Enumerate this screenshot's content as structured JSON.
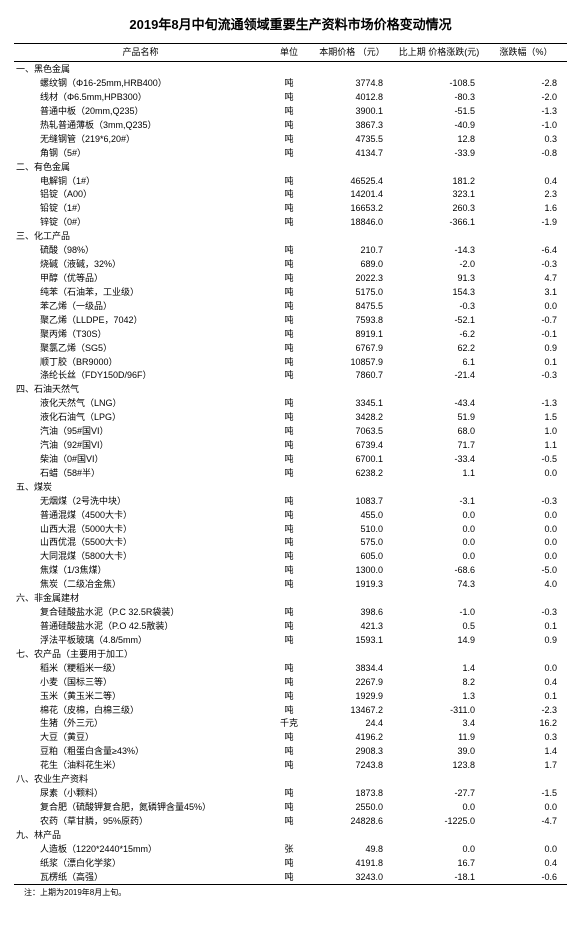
{
  "title": "2019年8月中旬流通领域重要生产资料市场价格变动情况",
  "columns": {
    "name": "产品名称",
    "unit": "单位",
    "price": "本期价格\n（元）",
    "change": "比上期\n价格涨跌(元)",
    "pct": "涨跌幅（%）"
  },
  "footnote": "注：上期为2019年8月上旬。",
  "rows": [
    {
      "cat": "一、黑色金属"
    },
    {
      "n": "螺纹钢（Φ16-25mm,HRB400）",
      "u": "吨",
      "p": "3774.8",
      "c": "-108.5",
      "r": "-2.8"
    },
    {
      "n": "线材（Φ6.5mm,HPB300）",
      "u": "吨",
      "p": "4012.8",
      "c": "-80.3",
      "r": "-2.0"
    },
    {
      "n": "普通中板（20mm,Q235）",
      "u": "吨",
      "p": "3900.1",
      "c": "-51.5",
      "r": "-1.3"
    },
    {
      "n": "热轧普通薄板（3mm,Q235）",
      "u": "吨",
      "p": "3867.3",
      "c": "-40.9",
      "r": "-1.0"
    },
    {
      "n": "无缝钢管（219*6,20#）",
      "u": "吨",
      "p": "4735.5",
      "c": "12.8",
      "r": "0.3"
    },
    {
      "n": "角钢（5#）",
      "u": "吨",
      "p": "4134.7",
      "c": "-33.9",
      "r": "-0.8"
    },
    {
      "cat": "二、有色金属"
    },
    {
      "n": "电解铜（1#）",
      "u": "吨",
      "p": "46525.4",
      "c": "181.2",
      "r": "0.4"
    },
    {
      "n": "铝锭（A00）",
      "u": "吨",
      "p": "14201.4",
      "c": "323.1",
      "r": "2.3"
    },
    {
      "n": "铅锭（1#）",
      "u": "吨",
      "p": "16653.2",
      "c": "260.3",
      "r": "1.6"
    },
    {
      "n": "锌锭（0#）",
      "u": "吨",
      "p": "18846.0",
      "c": "-366.1",
      "r": "-1.9"
    },
    {
      "cat": "三、化工产品"
    },
    {
      "n": "硫酸（98%）",
      "u": "吨",
      "p": "210.7",
      "c": "-14.3",
      "r": "-6.4"
    },
    {
      "n": "烧碱（液碱，32%）",
      "u": "吨",
      "p": "689.0",
      "c": "-2.0",
      "r": "-0.3"
    },
    {
      "n": "甲醇（优等品）",
      "u": "吨",
      "p": "2022.3",
      "c": "91.3",
      "r": "4.7"
    },
    {
      "n": "纯苯（石油苯，工业级）",
      "u": "吨",
      "p": "5175.0",
      "c": "154.3",
      "r": "3.1"
    },
    {
      "n": "苯乙烯（一级品）",
      "u": "吨",
      "p": "8475.5",
      "c": "-0.3",
      "r": "0.0"
    },
    {
      "n": "聚乙烯（LLDPE，7042）",
      "u": "吨",
      "p": "7593.8",
      "c": "-52.1",
      "r": "-0.7"
    },
    {
      "n": "聚丙烯（T30S）",
      "u": "吨",
      "p": "8919.1",
      "c": "-6.2",
      "r": "-0.1"
    },
    {
      "n": "聚氯乙烯（SG5）",
      "u": "吨",
      "p": "6767.9",
      "c": "62.2",
      "r": "0.9"
    },
    {
      "n": "顺丁胶（BR9000）",
      "u": "吨",
      "p": "10857.9",
      "c": "6.1",
      "r": "0.1"
    },
    {
      "n": "涤纶长丝（FDY150D/96F）",
      "u": "吨",
      "p": "7860.7",
      "c": "-21.4",
      "r": "-0.3"
    },
    {
      "cat": "四、石油天然气"
    },
    {
      "n": "液化天然气（LNG）",
      "u": "吨",
      "p": "3345.1",
      "c": "-43.4",
      "r": "-1.3"
    },
    {
      "n": "液化石油气（LPG）",
      "u": "吨",
      "p": "3428.2",
      "c": "51.9",
      "r": "1.5"
    },
    {
      "n": "汽油（95#国VI）",
      "u": "吨",
      "p": "7063.5",
      "c": "68.0",
      "r": "1.0"
    },
    {
      "n": "汽油（92#国VI）",
      "u": "吨",
      "p": "6739.4",
      "c": "71.7",
      "r": "1.1"
    },
    {
      "n": "柴油（0#国VI）",
      "u": "吨",
      "p": "6700.1",
      "c": "-33.4",
      "r": "-0.5"
    },
    {
      "n": "石蜡（58#半）",
      "u": "吨",
      "p": "6238.2",
      "c": "1.1",
      "r": "0.0"
    },
    {
      "cat": "五、煤炭"
    },
    {
      "n": "无烟煤（2号洗中块）",
      "u": "吨",
      "p": "1083.7",
      "c": "-3.1",
      "r": "-0.3"
    },
    {
      "n": "普通混煤（4500大卡）",
      "u": "吨",
      "p": "455.0",
      "c": "0.0",
      "r": "0.0"
    },
    {
      "n": "山西大混（5000大卡）",
      "u": "吨",
      "p": "510.0",
      "c": "0.0",
      "r": "0.0"
    },
    {
      "n": "山西优混（5500大卡）",
      "u": "吨",
      "p": "575.0",
      "c": "0.0",
      "r": "0.0"
    },
    {
      "n": "大同混煤（5800大卡）",
      "u": "吨",
      "p": "605.0",
      "c": "0.0",
      "r": "0.0"
    },
    {
      "n": "焦煤（1/3焦煤）",
      "u": "吨",
      "p": "1300.0",
      "c": "-68.6",
      "r": "-5.0"
    },
    {
      "n": "焦炭（二级冶金焦）",
      "u": "吨",
      "p": "1919.3",
      "c": "74.3",
      "r": "4.0"
    },
    {
      "cat": "六、非金属建材"
    },
    {
      "n": "复合硅酸盐水泥（P.C 32.5R袋装）",
      "u": "吨",
      "p": "398.6",
      "c": "-1.0",
      "r": "-0.3"
    },
    {
      "n": "普通硅酸盐水泥（P.O 42.5散装）",
      "u": "吨",
      "p": "421.3",
      "c": "0.5",
      "r": "0.1"
    },
    {
      "n": "浮法平板玻璃（4.8/5mm）",
      "u": "吨",
      "p": "1593.1",
      "c": "14.9",
      "r": "0.9"
    },
    {
      "cat": "七、农产品（主要用于加工）"
    },
    {
      "n": "稻米（粳稻米一级）",
      "u": "吨",
      "p": "3834.4",
      "c": "1.4",
      "r": "0.0"
    },
    {
      "n": "小麦（国标三等）",
      "u": "吨",
      "p": "2267.9",
      "c": "8.2",
      "r": "0.4"
    },
    {
      "n": "玉米（黄玉米二等）",
      "u": "吨",
      "p": "1929.9",
      "c": "1.3",
      "r": "0.1"
    },
    {
      "n": "棉花（皮棉，白棉三级）",
      "u": "吨",
      "p": "13467.2",
      "c": "-311.0",
      "r": "-2.3"
    },
    {
      "n": "生猪（外三元）",
      "u": "千克",
      "p": "24.4",
      "c": "3.4",
      "r": "16.2"
    },
    {
      "n": "大豆（黄豆）",
      "u": "吨",
      "p": "4196.2",
      "c": "11.9",
      "r": "0.3"
    },
    {
      "n": "豆粕（粗蛋白含量≥43%）",
      "u": "吨",
      "p": "2908.3",
      "c": "39.0",
      "r": "1.4"
    },
    {
      "n": "花生（油料花生米）",
      "u": "吨",
      "p": "7243.8",
      "c": "123.8",
      "r": "1.7"
    },
    {
      "cat": "八、农业生产资料"
    },
    {
      "n": "尿素（小颗料）",
      "u": "吨",
      "p": "1873.8",
      "c": "-27.7",
      "r": "-1.5"
    },
    {
      "n": "复合肥（硫酸钾复合肥，氮磷钾含量45%）",
      "u": "吨",
      "p": "2550.0",
      "c": "0.0",
      "r": "0.0"
    },
    {
      "n": "农药（草甘膦，95%原药）",
      "u": "吨",
      "p": "24828.6",
      "c": "-1225.0",
      "r": "-4.7"
    },
    {
      "cat": "九、林产品"
    },
    {
      "n": "人造板（1220*2440*15mm）",
      "u": "张",
      "p": "49.8",
      "c": "0.0",
      "r": "0.0"
    },
    {
      "n": "纸浆（漂白化学浆）",
      "u": "吨",
      "p": "4191.8",
      "c": "16.7",
      "r": "0.4"
    },
    {
      "n": "瓦楞纸（高强）",
      "u": "吨",
      "p": "3243.0",
      "c": "-18.1",
      "r": "-0.6"
    }
  ]
}
